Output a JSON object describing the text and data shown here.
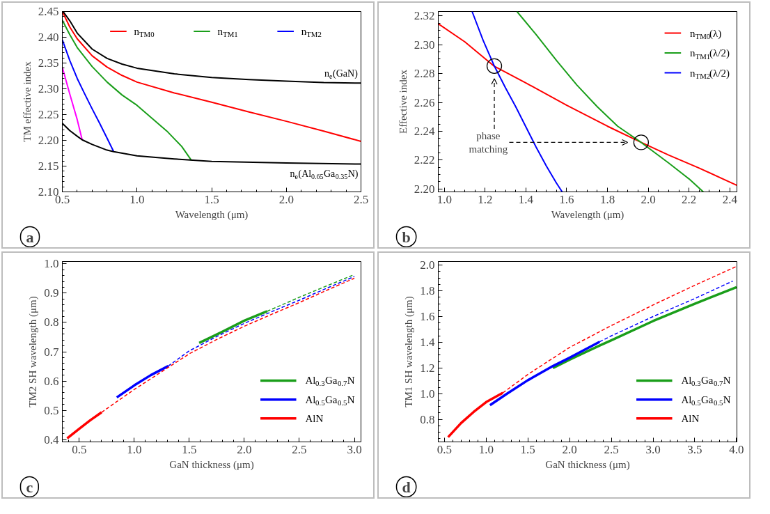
{
  "chart_data": [
    {
      "type": "line",
      "xlabel": "Wavelength (μm)",
      "ylabel": "TM effective index",
      "xlim": [
        0.5,
        2.5
      ],
      "ylim": [
        2.1,
        2.45
      ],
      "xticks": [
        0.5,
        {
          "value": 1,
          "label": "1.0"
        },
        1.5,
        {
          "value": 2,
          "label": "2.0"
        },
        2.5
      ],
      "yticks": [
        {
          "value": 2.1,
          "label": "2.10"
        },
        2.15,
        {
          "value": 2.2,
          "label": "2.20"
        },
        2.25,
        {
          "value": 2.3,
          "label": "2.30"
        },
        2.35,
        {
          "value": 2.4,
          "label": "2.40"
        },
        2.45
      ],
      "legend": "top",
      "series": [
        {
          "name": "n$_{TM0}$",
          "color": "#ff0000",
          "x": [
            0.5,
            0.55,
            0.6,
            0.7,
            0.8,
            0.9,
            1.0,
            1.25,
            1.5,
            1.75,
            2.0,
            2.25,
            2.5
          ],
          "values": [
            2.45,
            2.42,
            2.397,
            2.364,
            2.342,
            2.326,
            2.313,
            2.292,
            2.274,
            2.255,
            2.237,
            2.218,
            2.198
          ]
        },
        {
          "name": "n$_{TM1}$",
          "color": "#1a9e1a",
          "x": [
            0.5,
            0.55,
            0.6,
            0.7,
            0.8,
            0.9,
            1.0,
            1.1,
            1.2,
            1.3,
            1.365
          ],
          "values": [
            2.433,
            2.405,
            2.38,
            2.343,
            2.313,
            2.288,
            2.268,
            2.243,
            2.218,
            2.188,
            2.161
          ]
        },
        {
          "name": "n$_{TM2}$",
          "color": "#0000ff",
          "x": [
            0.5,
            0.55,
            0.6,
            0.65,
            0.7,
            0.75,
            0.8,
            0.844
          ],
          "values": [
            2.395,
            2.355,
            2.32,
            2.29,
            2.261,
            2.233,
            2.204,
            2.178
          ]
        },
        {
          "color": "#ff00ff",
          "x": [
            0.5,
            0.55,
            0.6,
            0.633
          ],
          "values": [
            2.342,
            2.29,
            2.24,
            2.201
          ]
        },
        {
          "name": "n$_{e}$(GaN)",
          "color": "#000000",
          "x": [
            0.505,
            0.55,
            0.6,
            0.7,
            0.8,
            0.9,
            1.0,
            1.25,
            1.5,
            1.75,
            2.0,
            2.25,
            2.5
          ],
          "values": [
            2.45,
            2.432,
            2.408,
            2.377,
            2.359,
            2.348,
            2.34,
            2.329,
            2.322,
            2.318,
            2.315,
            2.312,
            2.311
          ]
        },
        {
          "name": "n$_{e}$(Al$_{0.65}$Ga$_{0.35}$N)",
          "color": "#000000",
          "x": [
            0.5,
            0.55,
            0.6,
            0.633,
            0.7,
            0.8,
            0.844,
            1.0,
            1.25,
            1.5,
            2.0,
            2.5
          ],
          "values": [
            2.233,
            2.219,
            2.208,
            2.201,
            2.192,
            2.181,
            2.178,
            2.17,
            2.164,
            2.159,
            2.156,
            2.154
          ]
        }
      ],
      "annotations": [
        "a"
      ]
    },
    {
      "type": "line",
      "xlabel": "Wavelength (μm)",
      "ylabel": "Effective index",
      "xlim": [
        0.97,
        2.435
      ],
      "ylim": [
        2.198,
        2.323
      ],
      "xticks": [
        {
          "value": 1,
          "label": "1.0"
        },
        1.2,
        1.4,
        1.6,
        1.8,
        {
          "value": 2,
          "label": "2.0"
        },
        2.2,
        2.4
      ],
      "yticks": [
        {
          "value": 2.2,
          "label": "2.20"
        },
        2.22,
        2.24,
        2.26,
        2.28,
        {
          "value": 2.3,
          "label": "2.30"
        },
        2.32
      ],
      "legend": "top right",
      "series": [
        {
          "name": "n$_{TM0}$(λ)",
          "color": "#ff0000",
          "x": [
            0.97,
            1.1,
            1.245,
            1.4,
            1.6,
            1.8,
            1.965,
            2.1,
            2.25,
            2.435
          ],
          "values": [
            2.3145,
            2.302,
            2.285,
            2.2735,
            2.258,
            2.2435,
            2.2323,
            2.2235,
            2.2145,
            2.2025
          ]
        },
        {
          "name": "n$_{TM1}$(λ/2)",
          "color": "#1a9e1a",
          "x": [
            1.356,
            1.45,
            1.55,
            1.65,
            1.75,
            1.85,
            1.965,
            2.1,
            2.2,
            2.27
          ],
          "values": [
            2.323,
            2.307,
            2.289,
            2.272,
            2.257,
            2.2435,
            2.2323,
            2.218,
            2.207,
            2.198
          ]
        },
        {
          "name": "n$_{TM2}$(λ/2)",
          "color": "#0000ff",
          "x": [
            1.136,
            1.19,
            1.245,
            1.3,
            1.35,
            1.4,
            1.45,
            1.5,
            1.55,
            1.578
          ],
          "values": [
            2.323,
            2.303,
            2.2852,
            2.27,
            2.257,
            2.243,
            2.229,
            2.216,
            2.204,
            2.198
          ]
        },
        {
          "type": "scatter",
          "marker": "circle",
          "color": "#000000",
          "x": [
            1.245,
            1.965
          ],
          "values": [
            2.2852,
            2.2323
          ]
        }
      ],
      "annotations": [
        "b",
        "phase\nmatching"
      ]
    },
    {
      "type": "line",
      "xlabel": "GaN thickness (μm)",
      "ylabel": "TM2 SH wavelength (μm)",
      "xlim": [
        0.346,
        3.06
      ],
      "ylim": [
        0.392,
        1.008
      ],
      "xticks": [
        0.5,
        {
          "value": 1,
          "label": "1.0"
        },
        1.5,
        {
          "value": 2,
          "label": "2.0"
        },
        2.5,
        {
          "value": 3,
          "label": "3.0"
        }
      ],
      "yticks": [
        0.4,
        0.5,
        0.6,
        0.7,
        0.8,
        0.9,
        {
          "value": 1,
          "label": "1.0"
        }
      ],
      "legend": "bottom right",
      "series": [
        {
          "name": "Al$_{0.3}$Ga$_{0.7}$N",
          "color": "#1a9e1a",
          "line_style": "solid",
          "x": [
            1.59,
            1.8,
            2.0,
            2.207
          ],
          "values": [
            0.73,
            0.768,
            0.806,
            0.838
          ]
        },
        {
          "color": "#1a9e1a",
          "line_style": "dashed",
          "x": [
            2.207,
            2.5,
            2.75,
            2.99
          ],
          "values": [
            0.838,
            0.886,
            0.925,
            0.962
          ]
        },
        {
          "name": "Al$_{0.5}$Ga$_{0.5}$N",
          "color": "#0000ff",
          "line_style": "solid",
          "x": [
            0.841,
            1.0,
            1.15,
            1.308
          ],
          "values": [
            0.544,
            0.585,
            0.62,
            0.651
          ]
        },
        {
          "color": "#0000ff",
          "line_style": "dashed",
          "x": [
            1.308,
            1.5,
            1.75,
            2.0,
            2.25,
            2.5,
            2.75,
            3.0
          ],
          "values": [
            0.651,
            0.703,
            0.752,
            0.797,
            0.837,
            0.876,
            0.917,
            0.957
          ]
        },
        {
          "name": "AlN",
          "color": "#ff0000",
          "line_style": "solid",
          "x": [
            0.39,
            0.5,
            0.6,
            0.703
          ],
          "values": [
            0.404,
            0.437,
            0.466,
            0.493
          ]
        },
        {
          "color": "#ff0000",
          "line_style": "dashed",
          "x": [
            0.703,
            0.85,
            1.0,
            1.25,
            1.5,
            1.75,
            2.0,
            2.25,
            2.5,
            2.75,
            3.0
          ],
          "values": [
            0.493,
            0.532,
            0.571,
            0.632,
            0.693,
            0.742,
            0.787,
            0.828,
            0.868,
            0.91,
            0.951
          ]
        }
      ],
      "annotations": [
        "c"
      ]
    },
    {
      "type": "line",
      "xlabel": "GaN thickness (μm)",
      "ylabel": "TM1 SH wavelength (μm)",
      "xlim": [
        0.426,
        4.005
      ],
      "ylim": [
        0.625,
        2.028
      ],
      "xticks": [
        0.5,
        {
          "value": 1,
          "label": "1.0"
        },
        1.5,
        {
          "value": 2,
          "label": "2.0"
        },
        2.5,
        {
          "value": 3,
          "label": "3.0"
        },
        3.5,
        {
          "value": 4,
          "label": "4.0"
        }
      ],
      "yticks": [
        0.8,
        {
          "value": 1,
          "label": "1.0"
        },
        1.2,
        1.4,
        1.6,
        1.8,
        {
          "value": 2,
          "label": "2.0"
        }
      ],
      "legend": "bottom right",
      "series": [
        {
          "name": "Al$_{0.3}$Ga$_{0.7}$N",
          "color": "#1a9e1a",
          "line_style": "solid",
          "x": [
            1.8,
            2.0,
            2.36,
            2.5,
            3.0,
            3.5,
            4.0
          ],
          "values": [
            1.2,
            1.265,
            1.375,
            1.415,
            1.565,
            1.7,
            1.828
          ]
        },
        {
          "name": "Al$_{0.5}$Ga$_{0.5}$N",
          "color": "#0000ff",
          "line_style": "solid",
          "x": [
            1.046,
            1.25,
            1.5,
            1.8,
            2.0,
            2.36
          ],
          "values": [
            0.911,
            1.0,
            1.105,
            1.215,
            1.28,
            1.404
          ]
        },
        {
          "color": "#0000ff",
          "line_style": "dashed",
          "x": [
            2.36,
            2.5,
            3.0,
            3.5,
            3.955
          ],
          "values": [
            1.404,
            1.45,
            1.6,
            1.74,
            1.876
          ]
        },
        {
          "name": "AlN",
          "color": "#ff0000",
          "line_style": "solid",
          "x": [
            0.544,
            0.7,
            0.85,
            1.0,
            1.2
          ],
          "values": [
            0.662,
            0.772,
            0.858,
            0.935,
            1.007
          ]
        },
        {
          "color": "#ff0000",
          "line_style": "dashed",
          "x": [
            1.2,
            1.5,
            1.75,
            2.0,
            2.5,
            3.0,
            3.5,
            4.0
          ],
          "values": [
            1.007,
            1.15,
            1.255,
            1.36,
            1.53,
            1.69,
            1.843,
            1.99
          ]
        }
      ],
      "annotations": [
        "d"
      ]
    }
  ]
}
